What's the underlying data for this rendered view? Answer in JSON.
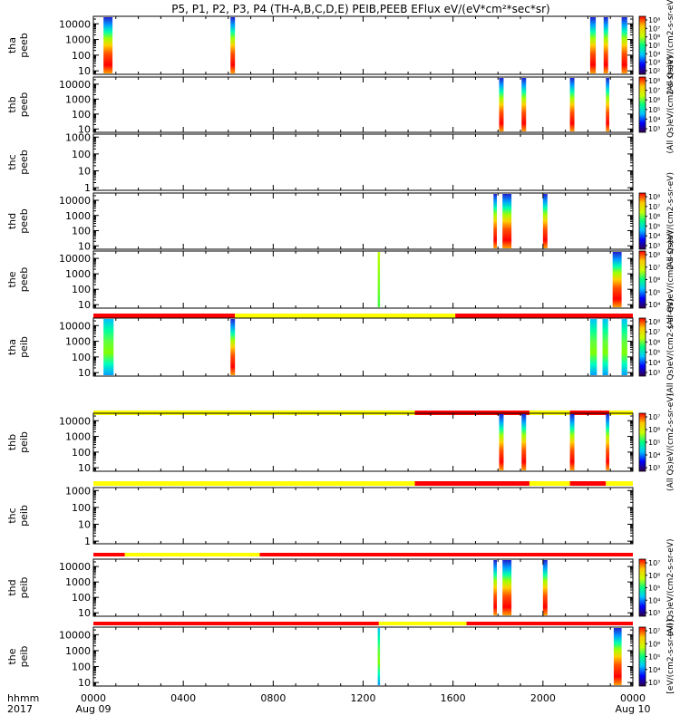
{
  "title": "P5, P1, P2, P3, P4 (TH-A,B,C,D,E) PEIB,PEEB EFlux eV/(eV*cm²*sec*sr)",
  "time_axis": {
    "row_label": "hhmm",
    "year_label": "2017",
    "ticks": [
      {
        "hour": 0,
        "label": "0000",
        "sublabel": "Aug 09"
      },
      {
        "hour": 4,
        "label": "0400",
        "sublabel": ""
      },
      {
        "hour": 8,
        "label": "0800",
        "sublabel": ""
      },
      {
        "hour": 12,
        "label": "1200",
        "sublabel": ""
      },
      {
        "hour": 16,
        "label": "1600",
        "sublabel": ""
      },
      {
        "hour": 20,
        "label": "2000",
        "sublabel": ""
      },
      {
        "hour": 24,
        "label": "0000",
        "sublabel": "Aug 10"
      }
    ]
  },
  "colors": {
    "mode_red": "#ff0000",
    "mode_yellow": "#ffff00",
    "spectrogram_scale": [
      "#30004a",
      "#0000ff",
      "#00c8ff",
      "#00ff80",
      "#c8ff00",
      "#ffc800",
      "#ff0000"
    ]
  },
  "chart_data": {
    "type": "heatmap",
    "x_unit": "hours since 0000 Aug 09",
    "xlim": [
      0,
      24
    ],
    "yscale": "log",
    "panels": [
      {
        "id": "tha-peeb",
        "ylabel": [
          "tha",
          "peeb"
        ],
        "ylim": [
          6,
          30000
        ],
        "yticks": [
          10,
          100,
          1000,
          10000
        ],
        "ytick_labels": [
          "10",
          "100",
          "1000",
          "10000"
        ],
        "cbar": {
          "ticks": [
            "10²",
            "10³",
            "10⁴",
            "10⁵",
            "10⁶",
            "10⁷",
            "10⁸"
          ],
          "label": "(All Qs)eV/(cm2-s-sr-eV)"
        },
        "bursts": [
          [
            0.45,
            0.85,
            "full"
          ],
          [
            6.1,
            6.3,
            "full"
          ],
          [
            22.1,
            22.35,
            "full"
          ],
          [
            22.7,
            22.9,
            "full"
          ],
          [
            23.5,
            23.75,
            "full"
          ]
        ]
      },
      {
        "id": "thb-peeb",
        "ylabel": [
          "thb",
          "peeb"
        ],
        "ylim": [
          6,
          30000
        ],
        "yticks": [
          10,
          100,
          1000,
          10000
        ],
        "ytick_labels": [
          "10",
          "100",
          "1000",
          "10000"
        ],
        "cbar": {
          "ticks": [
            "10³",
            "10⁴",
            "10⁵",
            "10⁶",
            "10⁷",
            "10⁸"
          ],
          "label": "(All Qs)eV/(cm2-s-sr-eV)"
        },
        "bursts": [
          [
            18.05,
            18.25,
            "full"
          ],
          [
            19.05,
            19.25,
            "full"
          ],
          [
            21.2,
            21.4,
            "full"
          ],
          [
            22.8,
            22.95,
            "full"
          ]
        ]
      },
      {
        "id": "thc-peeb",
        "ylabel": [
          "thc",
          "peeb"
        ],
        "ylim": [
          0.7,
          1500
        ],
        "yticks": [
          1,
          10,
          100,
          1000
        ],
        "ytick_labels": [
          "1",
          "10",
          "100",
          "1000"
        ],
        "cbar": null,
        "bursts": []
      },
      {
        "id": "thd-peeb",
        "ylabel": [
          "thd",
          "peeb"
        ],
        "ylim": [
          6,
          30000
        ],
        "yticks": [
          10,
          100,
          1000,
          10000
        ],
        "ytick_labels": [
          "10",
          "100",
          "1000",
          "10000"
        ],
        "cbar": {
          "ticks": [
            "10³",
            "10⁴",
            "10⁵",
            "10⁶",
            "10⁷",
            "10⁸"
          ],
          "label": "(All Qs)eV/(cm2-s-sr-eV)"
        },
        "bursts": [
          [
            17.8,
            17.95,
            "full"
          ],
          [
            18.2,
            18.6,
            "full"
          ],
          [
            20.0,
            20.2,
            "full"
          ]
        ]
      },
      {
        "id": "the-peeb",
        "ylabel": [
          "the",
          "peeb"
        ],
        "ylim": [
          6,
          30000
        ],
        "yticks": [
          10,
          100,
          1000,
          10000
        ],
        "ytick_labels": [
          "10",
          "100",
          "1000",
          "10000"
        ],
        "cbar": {
          "ticks": [
            "10⁴",
            "10⁵",
            "10⁶",
            "10⁷",
            "10⁸"
          ],
          "label": "(All Qs)eV/(cm2-s-sr-eV)"
        },
        "bursts": [
          [
            12.65,
            12.75,
            "green"
          ],
          [
            23.1,
            23.5,
            "full"
          ]
        ]
      },
      {
        "id": "tha-peib",
        "ylabel": [
          "tha",
          "peib"
        ],
        "ylim": [
          6,
          30000
        ],
        "yticks": [
          10,
          100,
          1000,
          10000
        ],
        "ytick_labels": [
          "10",
          "100",
          "1000",
          "10000"
        ],
        "cbar": {
          "ticks": [
            "10³",
            "10⁴",
            "10⁵",
            "10⁶",
            "10⁷",
            "10⁸"
          ],
          "label": "(All Qs)eV/(cm2-s-sr-eV)"
        },
        "mode_bar": [
          [
            0,
            6.3,
            "red"
          ],
          [
            6.3,
            16.1,
            "yellow"
          ],
          [
            16.1,
            24,
            "red"
          ]
        ],
        "bursts": [
          [
            0.45,
            0.9,
            "ion"
          ],
          [
            6.1,
            6.3,
            "full"
          ],
          [
            22.1,
            22.4,
            "ion"
          ],
          [
            22.65,
            22.9,
            "ion"
          ],
          [
            23.5,
            23.75,
            "ion"
          ]
        ]
      },
      {
        "id": "thb-peib",
        "ylabel": [
          "thb",
          "peib"
        ],
        "ylim": [
          6,
          30000
        ],
        "yticks": [
          10,
          100,
          1000,
          10000
        ],
        "ytick_labels": [
          "10",
          "100",
          "1000",
          "10000"
        ],
        "cbar": {
          "ticks": [
            "10³",
            "10⁴",
            "10⁵",
            "10⁶",
            "10⁷"
          ],
          "label": "(All Qs)eV/(cm2-s-sr-eV)"
        },
        "mode_bar": [
          [
            0,
            14.3,
            "yellow"
          ],
          [
            14.3,
            19.4,
            "red"
          ],
          [
            19.4,
            21.2,
            "yellow"
          ],
          [
            21.2,
            22.95,
            "red"
          ],
          [
            22.95,
            24,
            "yellow"
          ]
        ],
        "bursts": [
          [
            18.05,
            18.25,
            "full"
          ],
          [
            19.05,
            19.25,
            "full"
          ],
          [
            21.2,
            21.4,
            "full"
          ],
          [
            22.8,
            22.95,
            "full"
          ]
        ]
      },
      {
        "id": "thc-peib",
        "ylabel": [
          "thc",
          "peib"
        ],
        "ylim": [
          0.7,
          1500
        ],
        "yticks": [
          1,
          10,
          100,
          1000
        ],
        "ytick_labels": [
          "1",
          "10",
          "100",
          "1000"
        ],
        "cbar": null,
        "mode_bar": [
          [
            0,
            14.3,
            "yellow"
          ],
          [
            14.3,
            19.4,
            "red"
          ],
          [
            19.4,
            21.2,
            "yellow"
          ],
          [
            21.2,
            22.8,
            "red"
          ],
          [
            22.8,
            24,
            "yellow"
          ]
        ],
        "bursts": []
      },
      {
        "id": "thd-peib",
        "ylabel": [
          "thd",
          "peib"
        ],
        "ylim": [
          6,
          30000
        ],
        "yticks": [
          10,
          100,
          1000,
          10000
        ],
        "ytick_labels": [
          "10",
          "100",
          "1000",
          "10000"
        ],
        "cbar": {
          "ticks": [
            "10³",
            "10⁴",
            "10⁵",
            "10⁶",
            "10⁷"
          ],
          "label": "(All Qs)eV/(cm2-s-sr-eV)"
        },
        "mode_bar": [
          [
            0,
            1.4,
            "red"
          ],
          [
            1.4,
            7.4,
            "yellow"
          ],
          [
            7.4,
            24,
            "red"
          ]
        ],
        "bursts": [
          [
            17.8,
            17.95,
            "full"
          ],
          [
            18.2,
            18.6,
            "full"
          ],
          [
            20.0,
            20.2,
            "full"
          ]
        ]
      },
      {
        "id": "the-peib",
        "ylabel": [
          "the",
          "peib"
        ],
        "ylim": [
          6,
          30000
        ],
        "yticks": [
          10,
          100,
          1000,
          10000
        ],
        "ytick_labels": [
          "10",
          "100",
          "1000",
          "10000"
        ],
        "cbar": {
          "ticks": [
            "10³",
            "10⁴",
            "10⁵",
            "10⁶",
            "10⁷"
          ],
          "label": "[eV/(cm2-s-sr-eV)]"
        },
        "mode_bar": [
          [
            0,
            12.7,
            "red"
          ],
          [
            12.7,
            16.6,
            "yellow"
          ],
          [
            16.6,
            24,
            "red"
          ]
        ],
        "bursts": [
          [
            12.65,
            12.75,
            "ion"
          ],
          [
            23.15,
            23.5,
            "full"
          ]
        ]
      }
    ]
  }
}
